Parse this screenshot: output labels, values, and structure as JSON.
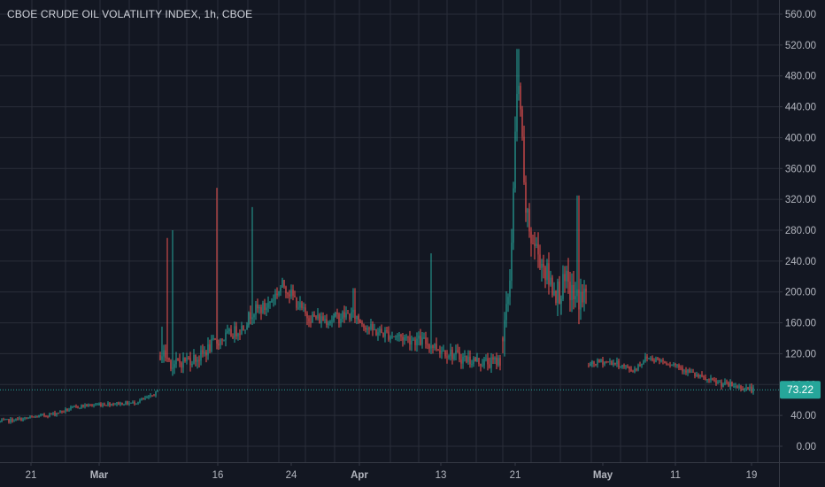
{
  "header": {
    "title": "CBOE CRUDE OIL VOLATILITY INDEX, 1h, CBOE"
  },
  "colors": {
    "background": "#131722",
    "grid": "#2a2e39",
    "up": "#26a69a",
    "down": "#ef5350",
    "text": "#b2b5be",
    "last_price_badge": "#26a69a"
  },
  "chart_data": {
    "type": "candlestick",
    "title": "CBOE CRUDE OIL VOLATILITY INDEX, 1h, CBOE",
    "interval": "1h",
    "y_axis": {
      "position": "right",
      "ticks": [
        "560.00",
        "520.00",
        "480.00",
        "440.00",
        "400.00",
        "360.00",
        "320.00",
        "280.00",
        "240.00",
        "200.00",
        "160.00",
        "120.00",
        "80.00",
        "40.00",
        "0.00"
      ],
      "range": [
        -12,
        572
      ]
    },
    "x_axis": {
      "ticks": [
        {
          "label": "21",
          "bold": false
        },
        {
          "label": "Mar",
          "bold": true
        },
        {
          "label": "16",
          "bold": false
        },
        {
          "label": "24",
          "bold": false
        },
        {
          "label": "Apr",
          "bold": true
        },
        {
          "label": "13",
          "bold": false
        },
        {
          "label": "21",
          "bold": false
        },
        {
          "label": "May",
          "bold": true
        },
        {
          "label": "11",
          "bold": false
        },
        {
          "label": "19",
          "bold": false
        }
      ]
    },
    "last_price": {
      "value": 73.22,
      "label": "73.22"
    },
    "grid": true,
    "segments": [
      {
        "t0": 0,
        "t1": 179,
        "path": [
          [
            0,
            32
          ],
          [
            30,
            36
          ],
          [
            60,
            42
          ],
          [
            90,
            52
          ],
          [
            120,
            55
          ],
          [
            150,
            56
          ],
          [
            170,
            64
          ],
          [
            179,
            72
          ]
        ],
        "noise": 3,
        "spikes": []
      },
      {
        "t0": 181,
        "t1": 566,
        "path": [
          [
            181,
            118
          ],
          [
            185,
            120
          ],
          [
            195,
            105
          ],
          [
            210,
            112
          ],
          [
            225,
            115
          ],
          [
            240,
            132
          ],
          [
            260,
            145
          ],
          [
            275,
            155
          ],
          [
            285,
            175
          ],
          [
            300,
            180
          ],
          [
            310,
            195
          ],
          [
            320,
            210
          ],
          [
            330,
            195
          ],
          [
            345,
            170
          ],
          [
            360,
            165
          ],
          [
            375,
            165
          ],
          [
            390,
            170
          ],
          [
            400,
            170
          ],
          [
            410,
            160
          ],
          [
            420,
            150
          ],
          [
            440,
            145
          ],
          [
            460,
            140
          ],
          [
            480,
            135
          ],
          [
            500,
            125
          ],
          [
            520,
            115
          ],
          [
            540,
            110
          ],
          [
            555,
            108
          ],
          [
            566,
            112
          ]
        ],
        "noise": 10,
        "spikes": [
          [
            183,
            155
          ],
          [
            189,
            270
          ],
          [
            195,
            280
          ],
          [
            245,
            335
          ],
          [
            285,
            310
          ],
          [
            400,
            205
          ],
          [
            487,
            250
          ]
        ]
      },
      {
        "t0": 568,
        "t1": 662,
        "path": [
          [
            568,
            140
          ],
          [
            572,
            170
          ],
          [
            576,
            220
          ],
          [
            579,
            300
          ],
          [
            582,
            400
          ],
          [
            585,
            470
          ],
          [
            588,
            440
          ],
          [
            592,
            330
          ],
          [
            596,
            290
          ],
          [
            600,
            270
          ],
          [
            606,
            255
          ],
          [
            612,
            240
          ],
          [
            620,
            215
          ],
          [
            630,
            200
          ],
          [
            640,
            210
          ],
          [
            650,
            190
          ],
          [
            662,
            195
          ]
        ],
        "noise": 22,
        "spikes": [
          [
            585,
            515
          ],
          [
            653,
            325
          ]
        ]
      },
      {
        "t0": 665,
        "t1": 852,
        "path": [
          [
            665,
            105
          ],
          [
            680,
            110
          ],
          [
            695,
            108
          ],
          [
            715,
            98
          ],
          [
            730,
            115
          ],
          [
            745,
            112
          ],
          [
            765,
            105
          ],
          [
            785,
            92
          ],
          [
            800,
            85
          ],
          [
            820,
            80
          ],
          [
            840,
            76
          ],
          [
            852,
            73
          ]
        ],
        "noise": 5,
        "spikes": []
      }
    ]
  }
}
